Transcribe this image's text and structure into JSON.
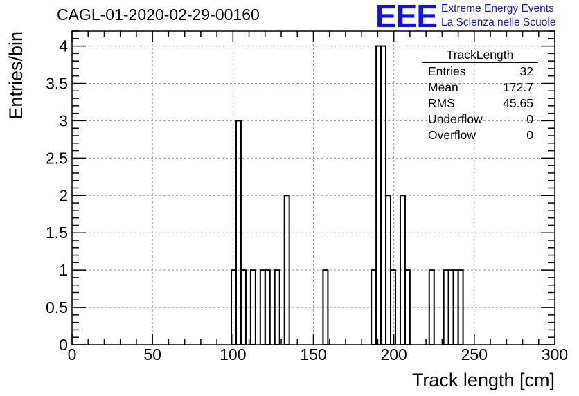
{
  "title": "CAGL-01-2020-02-29-00160",
  "logo": {
    "letters": "EEE",
    "line1": "Extreme Energy Events",
    "line2": "La Scienza nelle Scuole"
  },
  "stats": {
    "title": "TrackLength",
    "rows": [
      {
        "label": "Entries",
        "value": "32"
      },
      {
        "label": "Mean",
        "value": "172.7"
      },
      {
        "label": "RMS",
        "value": "45.65"
      },
      {
        "label": "Underflow",
        "value": "0"
      },
      {
        "label": "Overflow",
        "value": "0"
      }
    ]
  },
  "colors": {
    "logo": "#1010e8",
    "line": "#000000",
    "grid": "#9a9a9a"
  },
  "chart_data": {
    "type": "bar",
    "title": "CAGL-01-2020-02-29-00160",
    "xlabel": "Track length [cm]",
    "ylabel": "Entries/bin",
    "xlim": [
      0,
      300
    ],
    "ylim": [
      0,
      4.2
    ],
    "grid": true,
    "bin_width": 3,
    "x_ticks": [
      0,
      50,
      100,
      150,
      200,
      250,
      300
    ],
    "y_ticks": [
      0,
      0.5,
      1,
      1.5,
      2,
      2.5,
      3,
      3.5,
      4
    ],
    "x_tick_labels": [
      "0",
      "50",
      "100",
      "150",
      "200",
      "250",
      "300"
    ],
    "y_tick_labels": [
      "0",
      "0.5",
      "1",
      "1.5",
      "2",
      "2.5",
      "3",
      "3.5",
      "4"
    ],
    "bins": [
      {
        "x": 99,
        "y": 1
      },
      {
        "x": 102,
        "y": 3
      },
      {
        "x": 105,
        "y": 1
      },
      {
        "x": 108,
        "y": 0
      },
      {
        "x": 111,
        "y": 1
      },
      {
        "x": 114,
        "y": 0
      },
      {
        "x": 117,
        "y": 1
      },
      {
        "x": 120,
        "y": 1
      },
      {
        "x": 123,
        "y": 0
      },
      {
        "x": 126,
        "y": 1
      },
      {
        "x": 129,
        "y": 0
      },
      {
        "x": 132,
        "y": 2
      },
      {
        "x": 156,
        "y": 1
      },
      {
        "x": 186,
        "y": 1
      },
      {
        "x": 189,
        "y": 4
      },
      {
        "x": 192,
        "y": 4
      },
      {
        "x": 195,
        "y": 2
      },
      {
        "x": 198,
        "y": 1
      },
      {
        "x": 204,
        "y": 2
      },
      {
        "x": 207,
        "y": 1
      },
      {
        "x": 222,
        "y": 1
      },
      {
        "x": 231,
        "y": 1
      },
      {
        "x": 234,
        "y": 1
      },
      {
        "x": 237,
        "y": 1
      },
      {
        "x": 240,
        "y": 1
      }
    ]
  }
}
